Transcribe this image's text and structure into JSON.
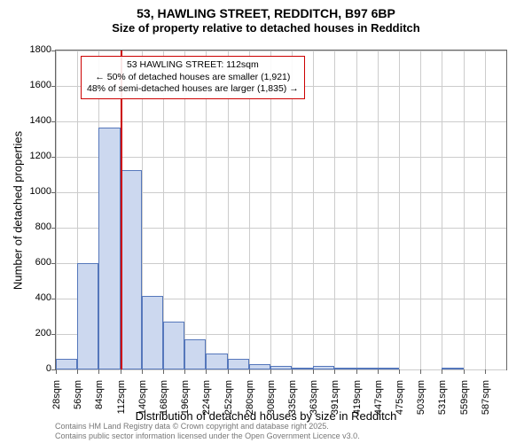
{
  "header": {
    "title": "53, HAWLING STREET, REDDITCH, B97 6BP",
    "subtitle": "Size of property relative to detached houses in Redditch"
  },
  "chart": {
    "type": "histogram",
    "ylabel": "Number of detached properties",
    "xlabel": "Distribution of detached houses by size in Redditch",
    "ylim": [
      0,
      1800
    ],
    "ytick_step": 200,
    "yticks": [
      0,
      200,
      400,
      600,
      800,
      1000,
      1200,
      1400,
      1600,
      1800
    ],
    "xticks": [
      "28sqm",
      "56sqm",
      "84sqm",
      "112sqm",
      "140sqm",
      "168sqm",
      "196sqm",
      "224sqm",
      "252sqm",
      "280sqm",
      "308sqm",
      "335sqm",
      "363sqm",
      "391sqm",
      "419sqm",
      "447sqm",
      "475sqm",
      "503sqm",
      "531sqm",
      "559sqm",
      "587sqm"
    ],
    "bar_color": "#ccd8ef",
    "bar_border_color": "#5577bb",
    "grid_color": "#cccccc",
    "background_color": "#ffffff",
    "marker_color": "#cc0000",
    "values": [
      60,
      600,
      1365,
      1125,
      415,
      270,
      170,
      90,
      60,
      30,
      20,
      10,
      20,
      5,
      5,
      5,
      0,
      0,
      5,
      0,
      0
    ],
    "marker_position_sqm": 112,
    "annotation": {
      "line1": "53 HAWLING STREET: 112sqm",
      "line2": "← 50% of detached houses are smaller (1,921)",
      "line3": "48% of semi-detached houses are larger (1,835) →"
    }
  },
  "footer": {
    "line1": "Contains HM Land Registry data © Crown copyright and database right 2025.",
    "line2": "Contains public sector information licensed under the Open Government Licence v3.0."
  }
}
